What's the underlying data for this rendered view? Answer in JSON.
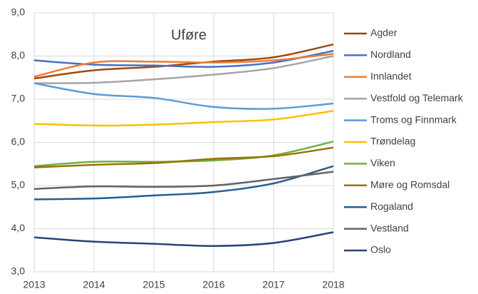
{
  "chart_data": {
    "type": "line",
    "title": "Uføre",
    "x": [
      2013,
      2014,
      2015,
      2016,
      2017,
      2018
    ],
    "xlim": [
      2013,
      2018
    ],
    "xticks": [
      2013,
      2014,
      2015,
      2016,
      2017,
      2018
    ],
    "ylim": [
      3,
      9
    ],
    "yticks": [
      {
        "value": 3,
        "label": "3,0"
      },
      {
        "value": 4,
        "label": "4,0"
      },
      {
        "value": 5,
        "label": "5,0"
      },
      {
        "value": 6,
        "label": "6,0"
      },
      {
        "value": 7,
        "label": "7,0"
      },
      {
        "value": 8,
        "label": "8,0"
      },
      {
        "value": 9,
        "label": "9,0"
      }
    ],
    "grid": true,
    "smooth": true,
    "legend": "right",
    "series": [
      {
        "name": "Agder",
        "color": "#9e480e",
        "values": [
          7.48,
          7.67,
          7.75,
          7.87,
          7.97,
          8.27
        ]
      },
      {
        "name": "Nordland",
        "color": "#4472c4",
        "values": [
          7.9,
          7.8,
          7.78,
          7.75,
          7.85,
          8.12
        ]
      },
      {
        "name": "Innlandet",
        "color": "#ed7d31",
        "values": [
          7.52,
          7.85,
          7.87,
          7.85,
          7.9,
          8.05
        ]
      },
      {
        "name": "Vestfold og Telemark",
        "color": "#a5a5a5",
        "values": [
          7.37,
          7.38,
          7.46,
          7.57,
          7.72,
          8.0
        ]
      },
      {
        "name": "Troms og Finnmark",
        "color": "#5b9bd5",
        "values": [
          7.37,
          7.12,
          7.03,
          6.82,
          6.78,
          6.9
        ]
      },
      {
        "name": "Trøndelag",
        "color": "#ffc000",
        "values": [
          6.43,
          6.39,
          6.41,
          6.47,
          6.53,
          6.73
        ]
      },
      {
        "name": "Viken",
        "color": "#70ad47",
        "values": [
          5.45,
          5.55,
          5.55,
          5.58,
          5.7,
          6.02
        ]
      },
      {
        "name": "Møre og Romsdal",
        "color": "#997300",
        "values": [
          5.42,
          5.48,
          5.52,
          5.62,
          5.68,
          5.88
        ]
      },
      {
        "name": "Rogaland",
        "color": "#255e91",
        "values": [
          4.68,
          4.7,
          4.77,
          4.85,
          5.05,
          5.45
        ]
      },
      {
        "name": "Vestland",
        "color": "#636363",
        "values": [
          4.92,
          4.98,
          4.97,
          5.0,
          5.15,
          5.32
        ]
      },
      {
        "name": "Oslo",
        "color": "#264478",
        "values": [
          3.8,
          3.7,
          3.65,
          3.6,
          3.67,
          3.92
        ]
      }
    ]
  }
}
